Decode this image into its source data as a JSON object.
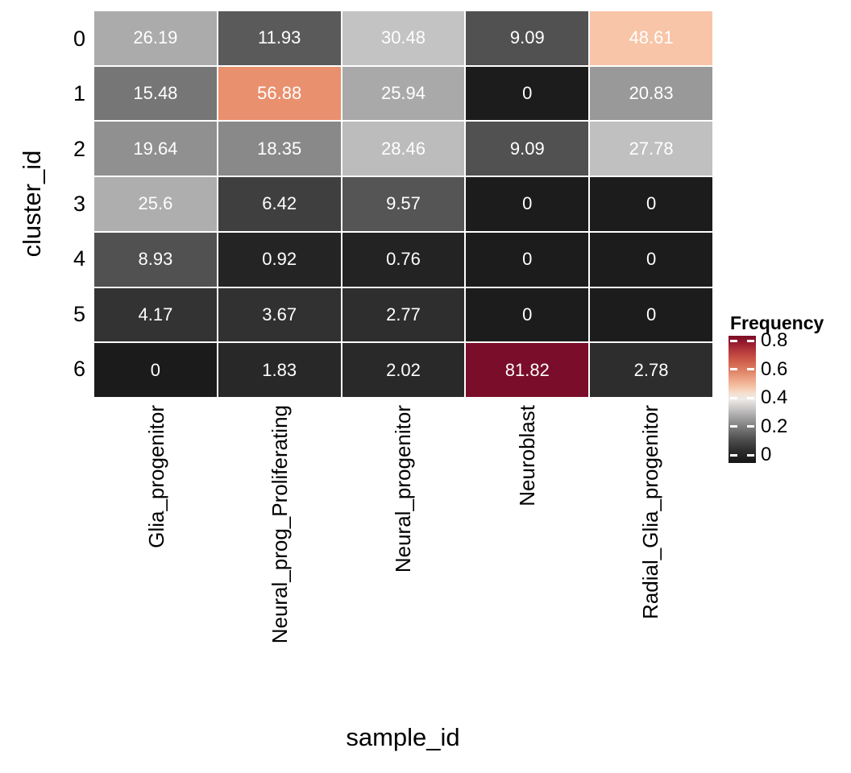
{
  "chart_data": {
    "type": "heatmap",
    "xlabel": "sample_id",
    "ylabel": "cluster_id",
    "x_categories": [
      "Glia_progenitor",
      "Neural_prog_Proliferating",
      "Neural_progenitor",
      "Neuroblast",
      "Radial_Glia_progenitor"
    ],
    "y_categories": [
      "0",
      "1",
      "2",
      "3",
      "4",
      "5",
      "6"
    ],
    "values": [
      [
        26.19,
        11.93,
        30.48,
        9.09,
        48.61
      ],
      [
        15.48,
        56.88,
        25.94,
        0,
        20.83
      ],
      [
        19.64,
        18.35,
        28.46,
        9.09,
        27.78
      ],
      [
        25.6,
        6.42,
        9.57,
        0,
        0
      ],
      [
        8.93,
        0.92,
        0.76,
        0,
        0
      ],
      [
        4.17,
        3.67,
        2.77,
        0,
        0
      ],
      [
        0,
        1.83,
        2.02,
        81.82,
        2.78
      ]
    ],
    "value_labels": [
      [
        "26.19",
        "11.93",
        "30.48",
        "9.09",
        "48.61"
      ],
      [
        "15.48",
        "56.88",
        "25.94",
        "0",
        "20.83"
      ],
      [
        "19.64",
        "18.35",
        "28.46",
        "9.09",
        "27.78"
      ],
      [
        "25.6",
        "6.42",
        "9.57",
        "0",
        "0"
      ],
      [
        "8.93",
        "0.92",
        "0.76",
        "0",
        "0"
      ],
      [
        "4.17",
        "3.67",
        "2.77",
        "0",
        "0"
      ],
      [
        "0",
        "1.83",
        "2.02",
        "81.82",
        "2.78"
      ]
    ],
    "cell_colors": [
      [
        "#ababab",
        "#5a5a5a",
        "#c3c3c3",
        "#515151",
        "#f8c5a8"
      ],
      [
        "#767676",
        "#e9906e",
        "#a9a9a9",
        "#1c1c1c",
        "#999999"
      ],
      [
        "#909090",
        "#898989",
        "#bcbcbc",
        "#515151",
        "#c0c0c0"
      ],
      [
        "#aeaeae",
        "#3f3f3f",
        "#555555",
        "#1c1c1c",
        "#1c1c1c"
      ],
      [
        "#515151",
        "#242424",
        "#232323",
        "#1c1c1c",
        "#1c1c1c"
      ],
      [
        "#333333",
        "#313131",
        "#2e2e2e",
        "#1c1c1c",
        "#1c1c1c"
      ],
      [
        "#1b1b1b",
        "#282828",
        "#292929",
        "#7a0d29",
        "#2d2d2d"
      ]
    ],
    "cell_text_color": "#ffffff",
    "legend": {
      "title": "Frequency",
      "ticks": [
        "0.8",
        "0.6",
        "0.4",
        "0.2",
        "0"
      ],
      "gradient_stops": [
        {
          "pos": 0,
          "color": "#7b0d26"
        },
        {
          "pos": 5,
          "color": "#94182d"
        },
        {
          "pos": 12,
          "color": "#b53a3c"
        },
        {
          "pos": 19,
          "color": "#cd5a49"
        },
        {
          "pos": 27,
          "color": "#dd7f62"
        },
        {
          "pos": 34,
          "color": "#eda487"
        },
        {
          "pos": 40,
          "color": "#f4c3a6"
        },
        {
          "pos": 45,
          "color": "#f6decf"
        },
        {
          "pos": 50,
          "color": "#edeae7"
        },
        {
          "pos": 57,
          "color": "#c9c8c7"
        },
        {
          "pos": 64,
          "color": "#a3a3a3"
        },
        {
          "pos": 72,
          "color": "#7b7b7b"
        },
        {
          "pos": 80,
          "color": "#555555"
        },
        {
          "pos": 90,
          "color": "#2e2e2e"
        },
        {
          "pos": 100,
          "color": "#151515"
        }
      ],
      "position": "right"
    },
    "grid_gap_color": "#ffffff"
  }
}
